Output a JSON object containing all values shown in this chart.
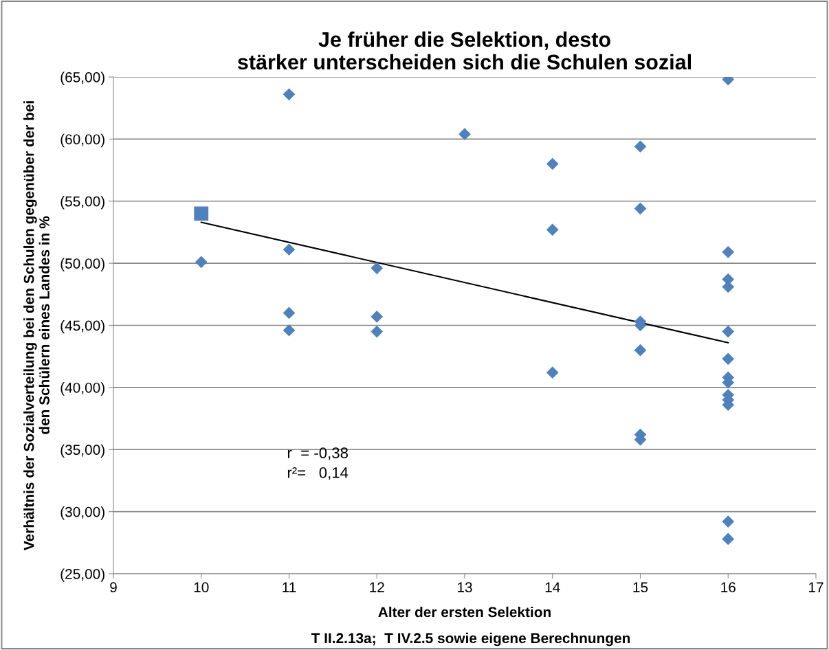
{
  "chart_data": {
    "type": "scatter",
    "title": "Je früher die Selektion, desto\nstärker unterscheiden sich die Schulen sozial",
    "xlabel": "Alter der ersten Selektion",
    "ylabel": "Verhältnis der Sozialverteilung bei den Schulen gegenüber der bei\nden Schülern eines Landes in %",
    "xlim": [
      9,
      17
    ],
    "xticks": [
      9,
      10,
      11,
      12,
      13,
      14,
      15,
      16,
      17
    ],
    "ylim": [
      25,
      65
    ],
    "yticks": [
      {
        "value": 25,
        "label": "(25,00)"
      },
      {
        "value": 30,
        "label": "(30,00)"
      },
      {
        "value": 35,
        "label": "(35,00)"
      },
      {
        "value": 40,
        "label": "(40,00)"
      },
      {
        "value": 45,
        "label": "(45,00)"
      },
      {
        "value": 50,
        "label": "(50,00)"
      },
      {
        "value": 55,
        "label": "(55,00)"
      },
      {
        "value": 60,
        "label": "(60,00)"
      },
      {
        "value": 65,
        "label": "(65,00)"
      }
    ],
    "grid": "y",
    "marker": "diamond",
    "series": [
      {
        "color": "#4f81bd",
        "x": [
          10,
          11,
          11,
          11,
          11,
          12,
          12,
          12,
          13,
          14,
          14,
          14,
          15,
          15,
          15,
          15,
          15,
          15,
          15,
          16,
          16,
          16,
          16,
          16,
          16,
          16,
          16,
          16,
          16,
          16,
          16,
          16
        ],
        "values": [
          50.1,
          63.6,
          51.1,
          46.0,
          44.6,
          49.6,
          45.7,
          44.5,
          60.4,
          58.0,
          52.7,
          41.2,
          59.4,
          54.4,
          45.3,
          45.0,
          43.0,
          36.2,
          35.8,
          64.8,
          50.9,
          48.7,
          48.1,
          44.5,
          42.3,
          40.8,
          40.4,
          39.4,
          39.0,
          38.6,
          29.2,
          27.8
        ]
      },
      {
        "color": "#4f81bd",
        "marker": "square",
        "x": [
          10
        ],
        "values": [
          54.0
        ]
      },
      {
        "type": "line",
        "color": "#000000",
        "marker": "none",
        "x": [
          10,
          16
        ],
        "values": [
          53.3,
          43.6
        ]
      }
    ],
    "annotations": [
      "r  = -0,38\nr²=   0,14",
      "T II.2.13a;  T IV.2.5 sowie eigene Berechnungen"
    ]
  }
}
